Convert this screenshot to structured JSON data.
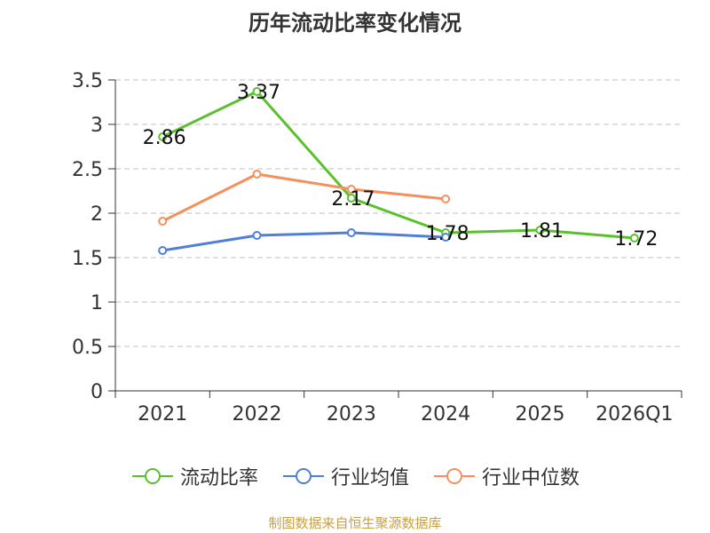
{
  "chart_data": {
    "type": "line",
    "title": "历年流动比率变化情况",
    "categories": [
      "2021",
      "2022",
      "2023",
      "2024",
      "2025",
      "2026Q1"
    ],
    "y_ticks": [
      "0",
      "0.5",
      "1",
      "1.5",
      "2",
      "2.5",
      "3",
      "3.5"
    ],
    "ylim": [
      0,
      3.5
    ],
    "grid": true,
    "legend_position": "bottom",
    "series": [
      {
        "name": "流动比率",
        "color": "#5bc02e",
        "values": [
          2.86,
          3.37,
          2.17,
          1.78,
          1.81,
          1.72
        ],
        "labels": [
          "2.86",
          "3.37",
          "2.17",
          "1.78",
          "1.81",
          "1.72"
        ]
      },
      {
        "name": "行业均值",
        "color": "#4f7fd8",
        "values": [
          1.58,
          1.75,
          1.78,
          1.73,
          null,
          null
        ]
      },
      {
        "name": "行业中位数",
        "color": "#f5905e",
        "values": [
          1.91,
          2.44,
          2.27,
          2.16,
          null,
          null
        ]
      }
    ]
  },
  "source": "制图数据来自恒生聚源数据库"
}
